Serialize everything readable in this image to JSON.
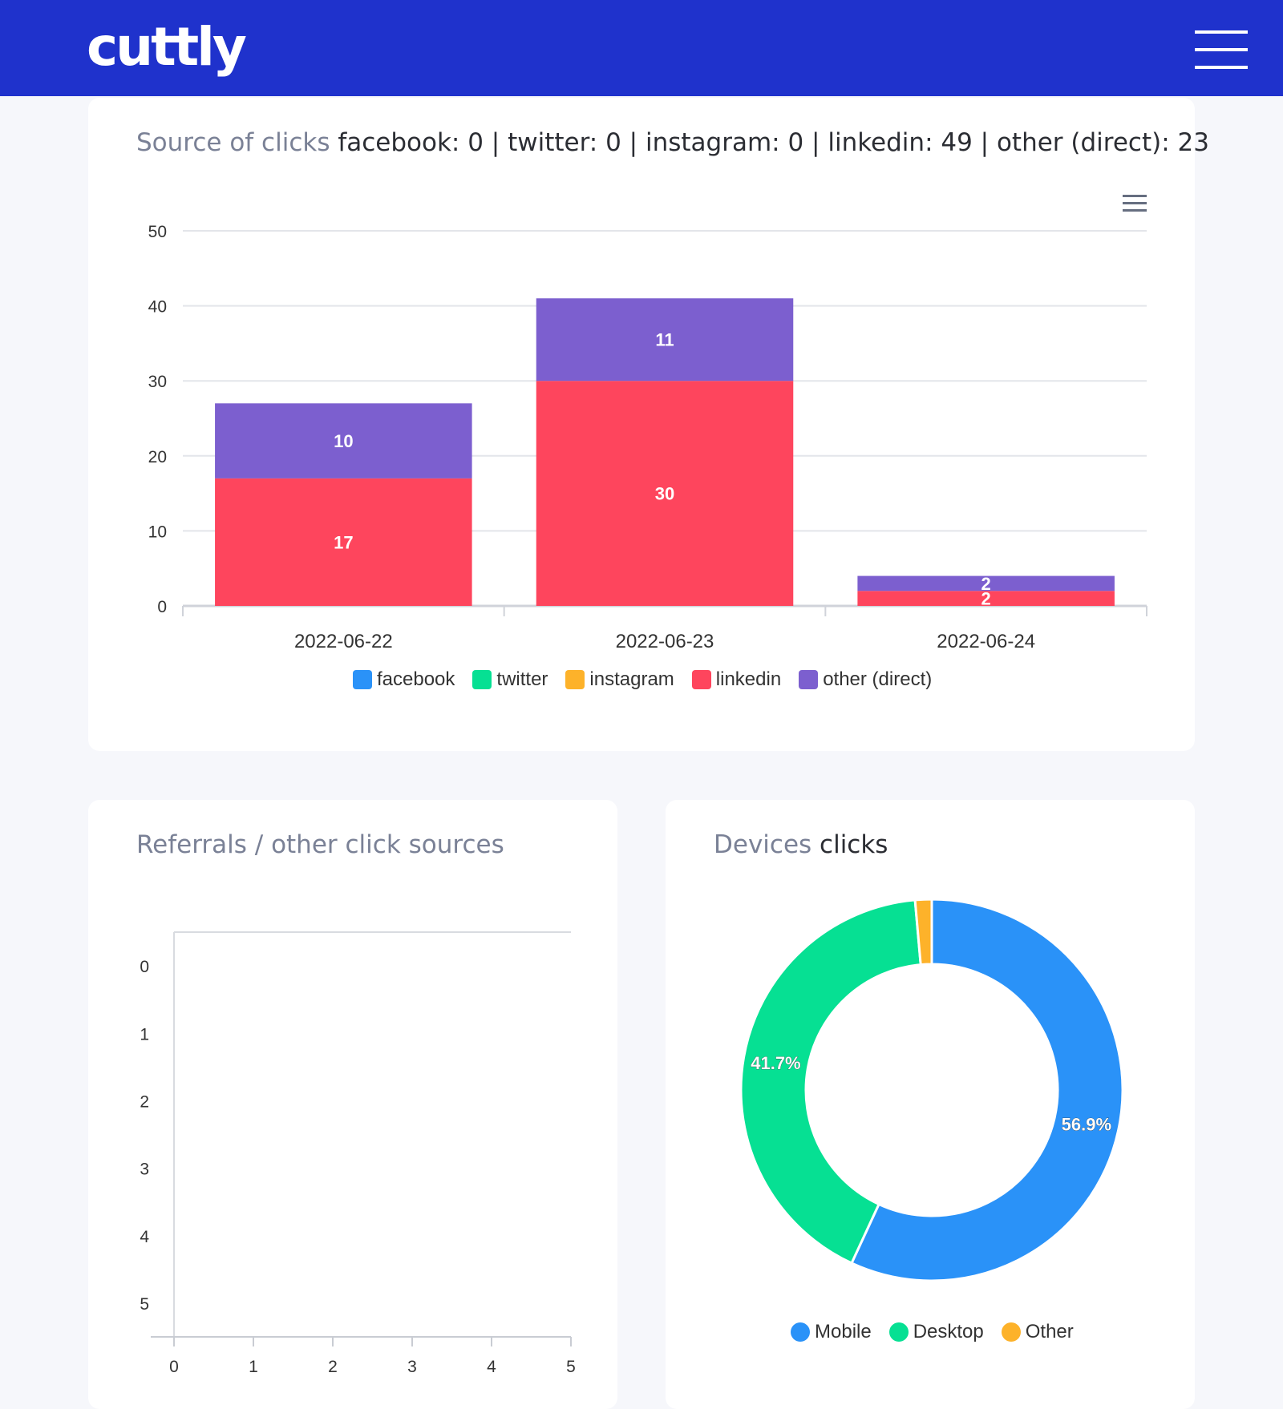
{
  "header": {
    "logo": "cuttly",
    "menu_icon": "hamburger-menu-icon",
    "background_color": "#1f32cc"
  },
  "source_card": {
    "title_prefix": "Source of clicks",
    "title_summary": "facebook: 0 | twitter: 0 | instagram: 0 | linkedin: 49 | other (direct): 23",
    "menu_icon": "chart-menu-icon"
  },
  "referrals_card": {
    "title": "Referrals / other click sources"
  },
  "devices_card": {
    "title_prefix": "Devices",
    "title_suffix": "clicks"
  },
  "chart_data": [
    {
      "type": "bar",
      "stacked": true,
      "categories": [
        "2022-06-22",
        "2022-06-23",
        "2022-06-24"
      ],
      "series": [
        {
          "name": "facebook",
          "color": "#2a92f8",
          "values": [
            0,
            0,
            0
          ]
        },
        {
          "name": "twitter",
          "color": "#06e093",
          "values": [
            0,
            0,
            0
          ]
        },
        {
          "name": "instagram",
          "color": "#fdb22a",
          "values": [
            0,
            0,
            0
          ]
        },
        {
          "name": "linkedin",
          "color": "#fe455d",
          "values": [
            17,
            30,
            2
          ]
        },
        {
          "name": "other (direct)",
          "color": "#7c5fcf",
          "values": [
            10,
            11,
            2
          ]
        }
      ],
      "ylim": [
        0,
        50
      ],
      "yticks": [
        0,
        10,
        20,
        30,
        40,
        50
      ],
      "grid": true,
      "legend": "bottom"
    },
    {
      "type": "bar",
      "orientation": "horizontal",
      "categories": [
        "0",
        "1",
        "2",
        "3",
        "4",
        "5"
      ],
      "series": [],
      "xticks": [
        0,
        1,
        2,
        3,
        4,
        5
      ],
      "xlim": [
        0,
        5
      ],
      "grid": true
    },
    {
      "type": "pie",
      "donut": true,
      "slices": [
        {
          "label": "Mobile",
          "value": 56.9,
          "text": "56.9%",
          "color": "#2a92f8"
        },
        {
          "label": "Desktop",
          "value": 41.7,
          "text": "41.7%",
          "color": "#06e093"
        },
        {
          "label": "Other",
          "value": 1.4,
          "text": "",
          "color": "#fdb22a"
        }
      ],
      "legend": "bottom"
    }
  ]
}
